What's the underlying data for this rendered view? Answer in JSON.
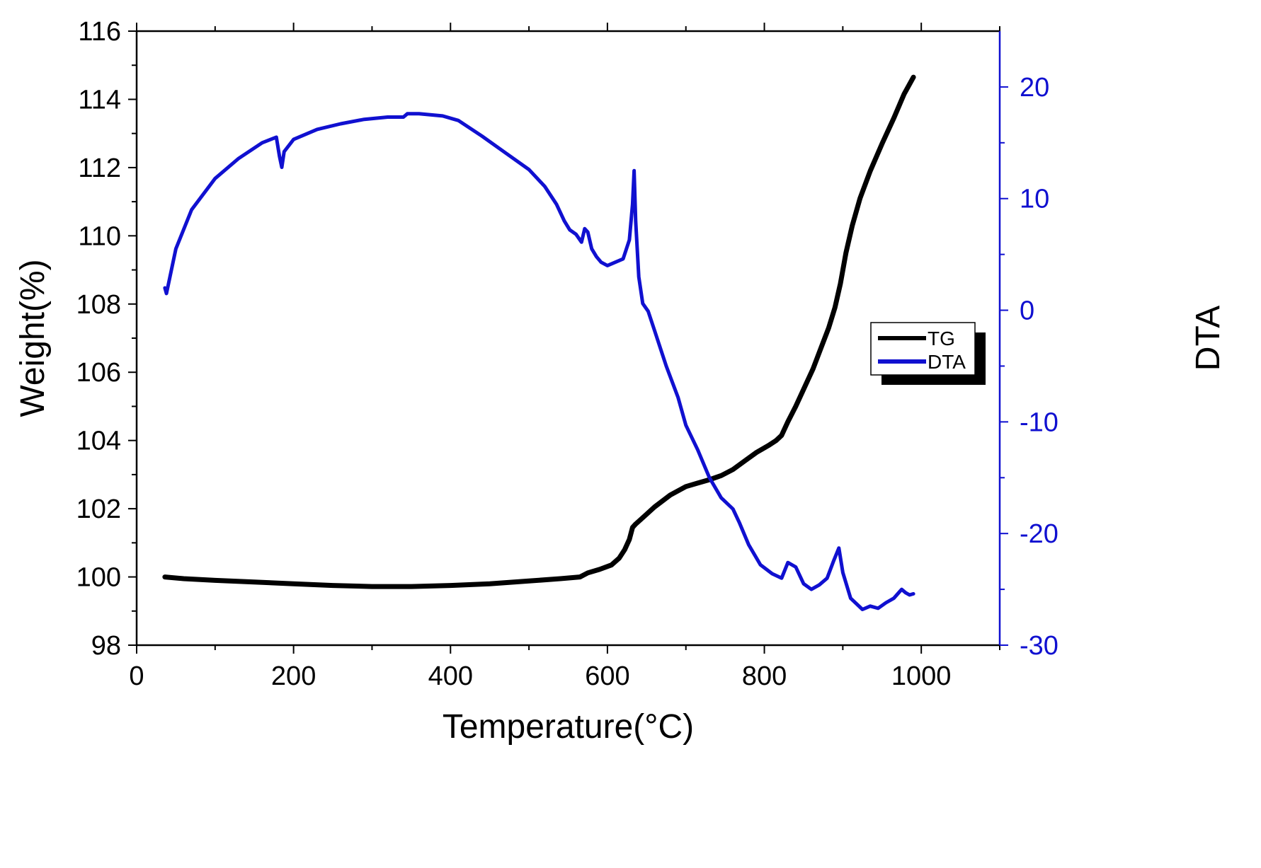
{
  "chart_data": {
    "type": "line",
    "title": "",
    "xlabel": "Temperature(°C)",
    "ylabel_left": "Weight(%)",
    "ylabel_right": "DTA",
    "xlim": [
      0,
      1100
    ],
    "ylim_left": [
      98,
      116
    ],
    "ylim_right": [
      -30,
      25
    ],
    "x_ticks": [
      0,
      200,
      400,
      600,
      800,
      1000
    ],
    "y_left_ticks": [
      98,
      100,
      102,
      104,
      106,
      108,
      110,
      112,
      114,
      116
    ],
    "y_right_ticks": [
      -30,
      -20,
      -10,
      0,
      10,
      20
    ],
    "y_right_ticks_minor": [
      -25,
      -15,
      -5,
      5,
      15
    ],
    "grid": false,
    "legend_position": "right-middle",
    "colors": {
      "tg": "#000000",
      "dta": "#1010d0",
      "right_axis": "#1010d0"
    },
    "series": [
      {
        "name": "TG",
        "axis": "left",
        "color": "#000000",
        "x": [
          36,
          60,
          100,
          150,
          200,
          250,
          300,
          350,
          400,
          450,
          500,
          540,
          565,
          575,
          590,
          605,
          615,
          622,
          628,
          632,
          636,
          648,
          660,
          680,
          700,
          715,
          730,
          745,
          760,
          775,
          790,
          805,
          815,
          822,
          830,
          840,
          852,
          862,
          872,
          882,
          890,
          897,
          904,
          912,
          922,
          935,
          950,
          965,
          978,
          990
        ],
        "y": [
          100.0,
          99.95,
          99.9,
          99.85,
          99.8,
          99.75,
          99.72,
          99.72,
          99.75,
          99.8,
          99.88,
          99.95,
          100.0,
          100.12,
          100.22,
          100.35,
          100.55,
          100.8,
          101.1,
          101.45,
          101.55,
          101.8,
          102.05,
          102.4,
          102.65,
          102.75,
          102.85,
          102.97,
          103.15,
          103.4,
          103.65,
          103.85,
          104.0,
          104.15,
          104.55,
          105.0,
          105.6,
          106.1,
          106.7,
          107.3,
          107.9,
          108.6,
          109.5,
          110.3,
          111.1,
          111.9,
          112.7,
          113.45,
          114.15,
          114.65
        ]
      },
      {
        "name": "DTA",
        "axis": "right",
        "color": "#1010d0",
        "x": [
          36,
          38,
          41,
          50,
          70,
          100,
          130,
          160,
          178,
          182,
          185,
          188,
          200,
          230,
          260,
          290,
          320,
          340,
          345,
          360,
          390,
          410,
          440,
          470,
          500,
          520,
          535,
          545,
          552,
          560,
          567,
          571,
          575,
          580,
          586,
          592,
          600,
          610,
          620,
          628,
          632,
          634,
          636,
          640,
          645,
          652,
          660,
          675,
          690,
          700,
          715,
          730,
          745,
          760,
          768,
          780,
          795,
          810,
          822,
          830,
          840,
          850,
          860,
          870,
          880,
          888,
          895,
          900,
          910,
          925,
          935,
          945,
          955,
          965,
          975,
          980,
          985,
          990
        ],
        "y": [
          2.0,
          1.5,
          2.5,
          5.5,
          9.0,
          11.8,
          13.6,
          15.0,
          15.5,
          13.8,
          12.8,
          14.2,
          15.3,
          16.2,
          16.7,
          17.1,
          17.3,
          17.3,
          17.6,
          17.6,
          17.4,
          17.0,
          15.6,
          14.1,
          12.6,
          11.1,
          9.5,
          8.0,
          7.2,
          6.8,
          6.1,
          7.3,
          7.0,
          5.5,
          4.8,
          4.3,
          4.0,
          4.3,
          4.6,
          6.3,
          9.5,
          12.5,
          8.0,
          3.0,
          0.6,
          -0.1,
          -1.8,
          -5.0,
          -7.8,
          -10.3,
          -12.5,
          -15.0,
          -16.8,
          -17.8,
          -19.0,
          -21.0,
          -22.8,
          -23.6,
          -24.0,
          -22.6,
          -23.0,
          -24.5,
          -25.0,
          -24.6,
          -24.0,
          -22.5,
          -21.3,
          -23.5,
          -25.8,
          -26.8,
          -26.5,
          -26.7,
          -26.2,
          -25.8,
          -25.0,
          -25.3,
          -25.5,
          -25.4
        ]
      }
    ]
  }
}
